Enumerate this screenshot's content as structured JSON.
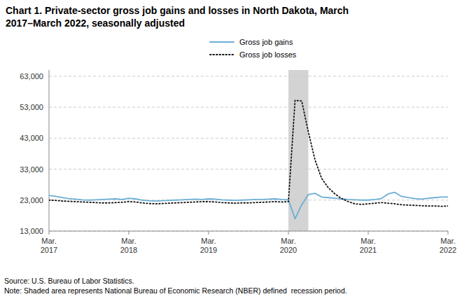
{
  "chart_data": {
    "type": "line",
    "title": "Chart 1. Private-sector gross job gains and losses in North Dakota, March\n2017–March 2022, seasonally adjusted",
    "source": "Source: U.S. Bureau of Labor Statistics.\nNote: Shaded area represents National Bureau of Economic Research (NBER) defined  recession period.",
    "categories": [
      "Mar.\n2017",
      null,
      null,
      null,
      null,
      null,
      null,
      null,
      null,
      null,
      null,
      null,
      "Mar.\n2018",
      null,
      null,
      null,
      null,
      null,
      null,
      null,
      null,
      null,
      null,
      null,
      "Mar.\n2019",
      null,
      null,
      null,
      null,
      null,
      null,
      null,
      null,
      null,
      null,
      null,
      "Mar.\n2020",
      null,
      null,
      null,
      null,
      null,
      null,
      null,
      null,
      null,
      null,
      null,
      "Mar.\n2021",
      null,
      null,
      null,
      null,
      null,
      null,
      null,
      null,
      null,
      null,
      null,
      "Mar.\n2022"
    ],
    "shaded_range": {
      "start": 36,
      "end": 39,
      "color": "#d3d3d3"
    },
    "series": [
      {
        "name": "Gross job gains",
        "color": "#6baed6",
        "line_style": "solid",
        "values": [
          24500,
          24200,
          23800,
          23500,
          23300,
          23100,
          23000,
          23100,
          23200,
          23300,
          23400,
          23200,
          23600,
          23400,
          23000,
          22800,
          22700,
          22800,
          22900,
          23000,
          23100,
          23200,
          23300,
          23200,
          23400,
          23300,
          23100,
          23000,
          22900,
          23000,
          23100,
          23200,
          23200,
          23300,
          23400,
          23200,
          23100,
          17000,
          21500,
          24800,
          25200,
          24000,
          23800,
          23600,
          23400,
          23200,
          23100,
          23000,
          23000,
          23200,
          23500,
          25000,
          25500,
          24200,
          23800,
          23500,
          23300,
          23600,
          23800,
          24000,
          24000
        ]
      },
      {
        "name": "Gross job losses",
        "color": "#111111",
        "line_style": "dotted",
        "values": [
          23000,
          22900,
          22700,
          22600,
          22500,
          22400,
          22300,
          22200,
          22100,
          22100,
          22200,
          22300,
          22500,
          22400,
          22100,
          21900,
          21800,
          21900,
          22000,
          22100,
          22200,
          22300,
          22400,
          22500,
          22500,
          22400,
          22200,
          22100,
          22000,
          22100,
          22100,
          22200,
          22300,
          22400,
          22500,
          22400,
          22500,
          55200,
          55000,
          45000,
          36000,
          30000,
          27000,
          25000,
          23500,
          22500,
          21800,
          21600,
          21800,
          22000,
          22200,
          22000,
          21800,
          21500,
          21400,
          21300,
          21200,
          21100,
          21100,
          21000,
          21100
        ]
      }
    ],
    "ylim": [
      13000,
      65000
    ],
    "yticks": [
      {
        "value": 13000,
        "label": "13,000"
      },
      {
        "value": 23000,
        "label": "23,000"
      },
      {
        "value": 33000,
        "label": "33,000"
      },
      {
        "value": 43000,
        "label": "43,000"
      },
      {
        "value": 53000,
        "label": "53,000"
      },
      {
        "value": 63000,
        "label": "63,000"
      }
    ],
    "grid": true,
    "legend": "top"
  }
}
